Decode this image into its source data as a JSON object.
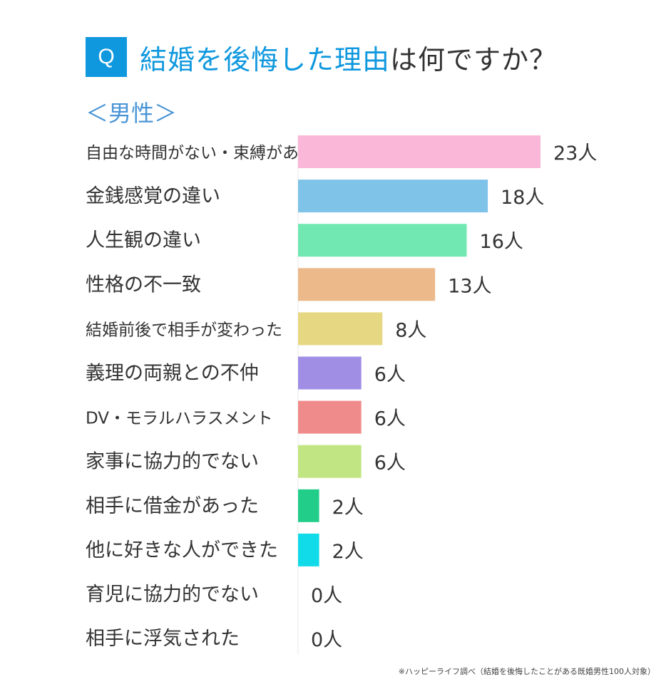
{
  "header": {
    "badge": "Q",
    "title_highlight": "結婚を後悔した理由",
    "title_rest": "は何ですか？",
    "subtitle": "＜男性＞"
  },
  "colors": {
    "accent": "#0f98de",
    "subtitle": "#4a95d6"
  },
  "chart_data": {
    "type": "bar",
    "orientation": "horizontal",
    "categories": [
      "自由な時間がない・束縛がある",
      "金銭感覚の違い",
      "人生観の違い",
      "性格の不一致",
      "結婚前後で相手が変わった",
      "義理の両親との不仲",
      "DV・モラルハラスメント",
      "家事に協力的でない",
      "相手に借金があった",
      "他に好きな人ができた",
      "育児に協力的でない",
      "相手に浮気された"
    ],
    "values": [
      23,
      18,
      16,
      13,
      8,
      6,
      6,
      6,
      2,
      2,
      0,
      0
    ],
    "value_labels": [
      "23人",
      "18人",
      "16人",
      "13人",
      "8人",
      "6人",
      "6人",
      "6人",
      "2人",
      "2人",
      "0人",
      "0人"
    ],
    "colors": [
      "#fbb7d7",
      "#80c3e9",
      "#71e8b2",
      "#ebb98a",
      "#e6d883",
      "#a08ee5",
      "#f08b8b",
      "#c2e583",
      "#22cd8a",
      "#11dbe8",
      "#cccccc",
      "#cccccc"
    ],
    "unit": "人",
    "grid": false
  },
  "footnote": "※ハッピーライフ調べ（結婚を後悔したことがある既婚男性100人対象）"
}
